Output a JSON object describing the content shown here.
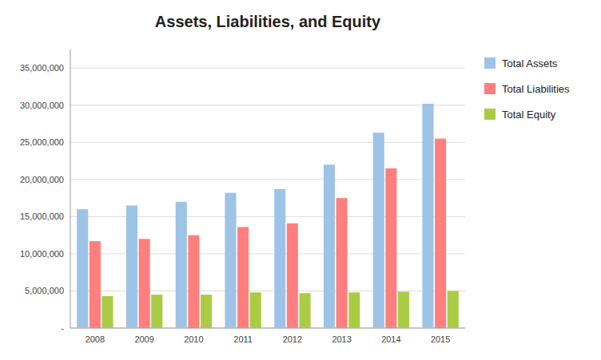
{
  "chart_data": {
    "type": "bar",
    "title": "Assets, Liabilities, and Equity",
    "categories": [
      "2008",
      "2009",
      "2010",
      "2011",
      "2012",
      "2013",
      "2014",
      "2015"
    ],
    "series": [
      {
        "name": "Total Assets",
        "color": "#9DC3E6",
        "values": [
          16000000,
          16500000,
          17000000,
          18200000,
          18700000,
          22000000,
          26300000,
          30200000
        ]
      },
      {
        "name": "Total Liabilities",
        "color": "#FF7F7F",
        "values": [
          11700000,
          12000000,
          12500000,
          13600000,
          14100000,
          17500000,
          21500000,
          25500000
        ]
      },
      {
        "name": "Total Equity",
        "color": "#AACC44",
        "values": [
          4300000,
          4500000,
          4500000,
          4800000,
          4700000,
          4800000,
          4900000,
          5000000
        ]
      }
    ],
    "ylim": [
      0,
      37500000
    ],
    "yticks": [
      {
        "value": 0,
        "label": "-"
      },
      {
        "value": 5000000,
        "label": "5,000,000"
      },
      {
        "value": 10000000,
        "label": "10,000,000"
      },
      {
        "value": 15000000,
        "label": "15,000,000"
      },
      {
        "value": 20000000,
        "label": "20,000,000"
      },
      {
        "value": 25000000,
        "label": "25,000,000"
      },
      {
        "value": 30000000,
        "label": "30,000,000"
      },
      {
        "value": 35000000,
        "label": "35,000,000"
      }
    ],
    "grid": true,
    "legend": "right"
  }
}
